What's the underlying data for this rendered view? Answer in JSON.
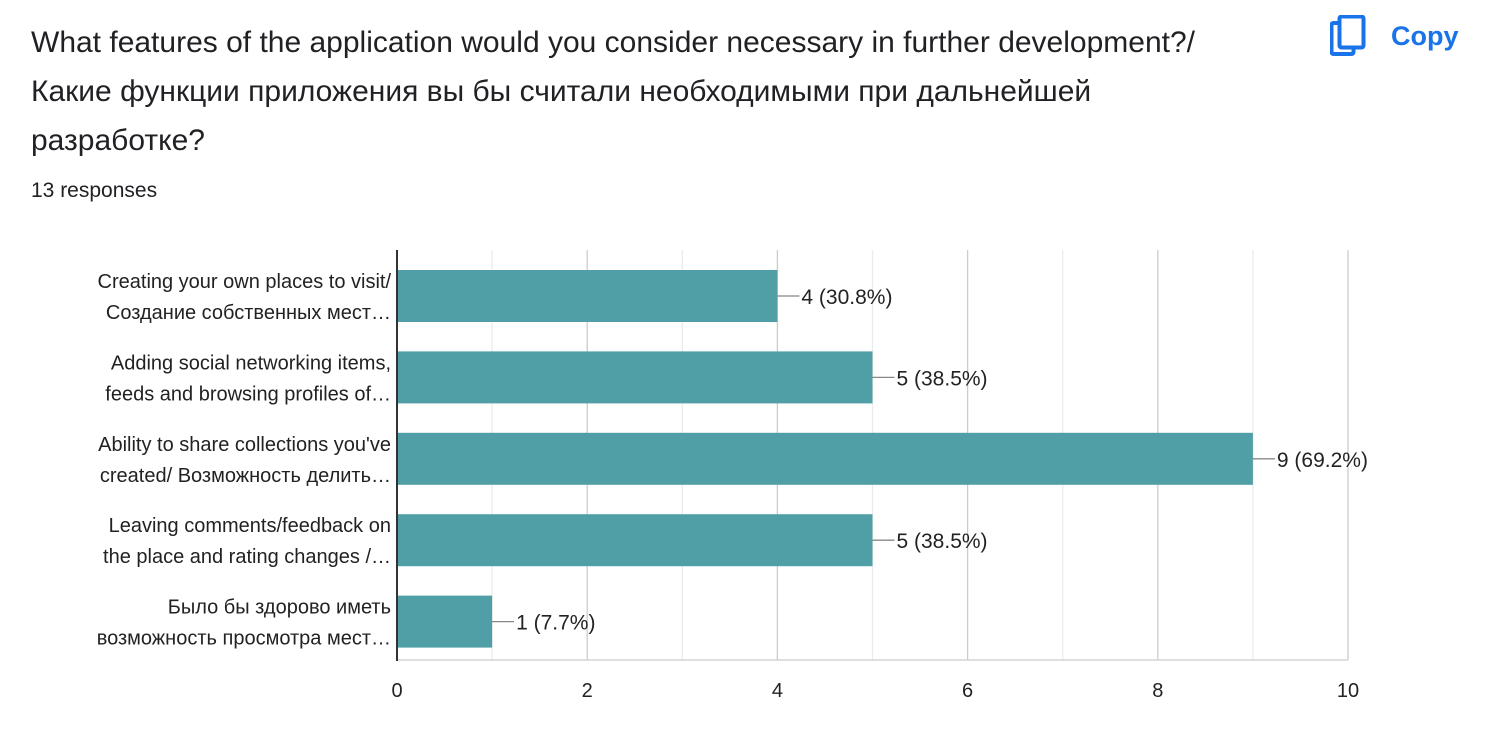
{
  "header": {
    "question": "What features of the application would you consider necessary in further development?/ Какие функции приложения вы бы считали необходимыми при дальнейшей разработке?",
    "responses": "13 responses",
    "copy_label": "Copy",
    "copy_icon": "copy-icon",
    "accent_color": "#1a73e8"
  },
  "chart_data": {
    "type": "bar",
    "orientation": "horizontal",
    "categories": [
      [
        "Creating your own places to visit/",
        "Создание собственных мест…"
      ],
      [
        "Adding social networking items,",
        "feeds and browsing profiles of…"
      ],
      [
        "Ability to share collections you've",
        "created/ Возможность делить…"
      ],
      [
        "Leaving comments/feedback on",
        "the place and rating changes /…"
      ],
      [
        "Было бы здорово иметь",
        "возможность просмотра мест…"
      ]
    ],
    "values": [
      4,
      5,
      9,
      5,
      1
    ],
    "data_labels": [
      "4 (30.8%)",
      "5 (38.5%)",
      "9 (69.2%)",
      "5 (38.5%)",
      "1 (7.7%)"
    ],
    "xlim": [
      0,
      10
    ],
    "xticks": [
      0,
      2,
      4,
      6,
      8,
      10
    ],
    "grid": true,
    "bar_color": "#519fa6",
    "title": "",
    "xlabel": "",
    "ylabel": ""
  }
}
